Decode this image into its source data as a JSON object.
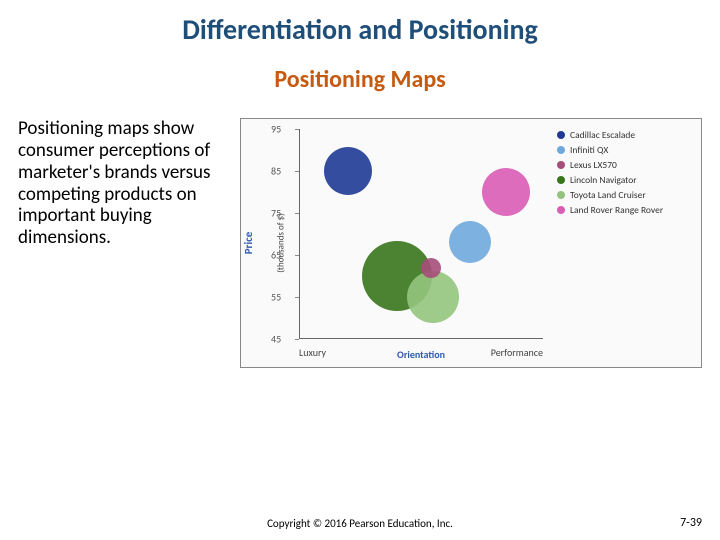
{
  "slide": {
    "title": "Differentiation and Positioning",
    "subtitle": "Positioning Maps",
    "body_text": "Positioning maps show consumer perceptions of marketer's brands versus competing products on important buying dimensions.",
    "copyright": "Copyright © 2016 Pearson Education, Inc.",
    "page_number": "7-39"
  },
  "chart": {
    "type": "bubble",
    "ylabel": "Price",
    "ylabel_sub": "(thousands of $)",
    "xlabel_left": "Luxury",
    "xlabel_right": "Performance",
    "xaxis_title": "Orientation",
    "ylim": [
      45,
      95
    ],
    "yticks": [
      45,
      55,
      65,
      75,
      85,
      95
    ],
    "xlim": [
      0,
      100
    ],
    "background_color": "#fafafa",
    "axis_color": "#666666",
    "series": [
      {
        "label": "Cadillac Escalade",
        "color": "#1f3a93",
        "x": 20,
        "y": 85,
        "size": 48
      },
      {
        "label": "Infiniti QX",
        "color": "#6fa8dc",
        "x": 70,
        "y": 68,
        "size": 42
      },
      {
        "label": "Lexus LX570",
        "color": "#a64d79",
        "x": 54,
        "y": 62,
        "size": 20
      },
      {
        "label": "Lincoln Navigator",
        "color": "#38761d",
        "x": 40,
        "y": 60,
        "size": 70
      },
      {
        "label": "Toyota Land Cruiser",
        "color": "#93c47d",
        "x": 55,
        "y": 55,
        "size": 52
      },
      {
        "label": "Land Rover Range Rover",
        "color": "#d95db5",
        "x": 85,
        "y": 80,
        "size": 48
      }
    ]
  }
}
